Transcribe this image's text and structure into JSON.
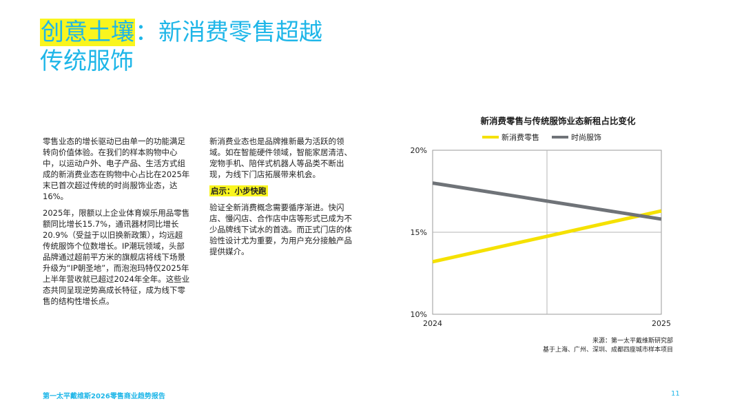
{
  "title": {
    "highlight": "创意土壤",
    "line1_rest": "：新消费零售超越",
    "line2": "传统服饰"
  },
  "column1": {
    "para1": "零售业态的增长驱动已由单一的功能满足转向价值体验。在我们的样本购物中心中，以运动户外、电子产品、生活方式组成的新消费业态在购物中心占比在2025年末已首次超过传统的时尚服饰业态，达16%。",
    "para2": "2025年，限额以上企业体育娱乐用品零售额同比增长15.7%，通讯器材同比增长20.9%（受益于以旧换新政策），均远超传统服饰个位数增长。IP潮玩领域，头部品牌通过超前平方米的旗舰店将线下场景升级为“IP朝圣地”，而泡泡玛特仅2025年上半年营收就已超过2024年全年。这些业态共同呈现逆势高成长特征，成为线下零售的结构性增长点。"
  },
  "column2": {
    "para1": "新消费业态也是品牌推新最为活跃的领域。如在智能硬件领域，智能家居清洁、宠物手机、陪伴式机器人等品类不断出现，为线下门店拓展带来机会。",
    "subheading": "启示：小步快跑",
    "para2": "验证全新消费概念需要循序渐进。快闪店、慢闪店、合作店中店等形式已成为不少品牌线下试水的首选。而正式门店的体验性设计尤为重要，为用户充分接触产品提供媒介。"
  },
  "chart_data": {
    "type": "line",
    "title": "新消费零售与传统服饰业态新租占比变化",
    "x": [
      "2024",
      "2025"
    ],
    "series": [
      {
        "name": "新消费零售",
        "values": [
          13.2,
          16.3
        ],
        "color": "#f5e100"
      },
      {
        "name": "时尚服饰",
        "values": [
          18.0,
          15.8
        ],
        "color": "#6f7378"
      }
    ],
    "yticks": [
      "20%",
      "15%",
      "10%"
    ],
    "ylim": [
      10,
      20
    ],
    "grid": true,
    "legend": "top"
  },
  "source": {
    "line1": "来源：第一太平戴维斯研究部",
    "line2": "基于上海、广州、深圳、成都四座城市样本项目"
  },
  "footer": {
    "report": "第一太平戴维斯2026零售商业趋势报告",
    "page": "11"
  }
}
